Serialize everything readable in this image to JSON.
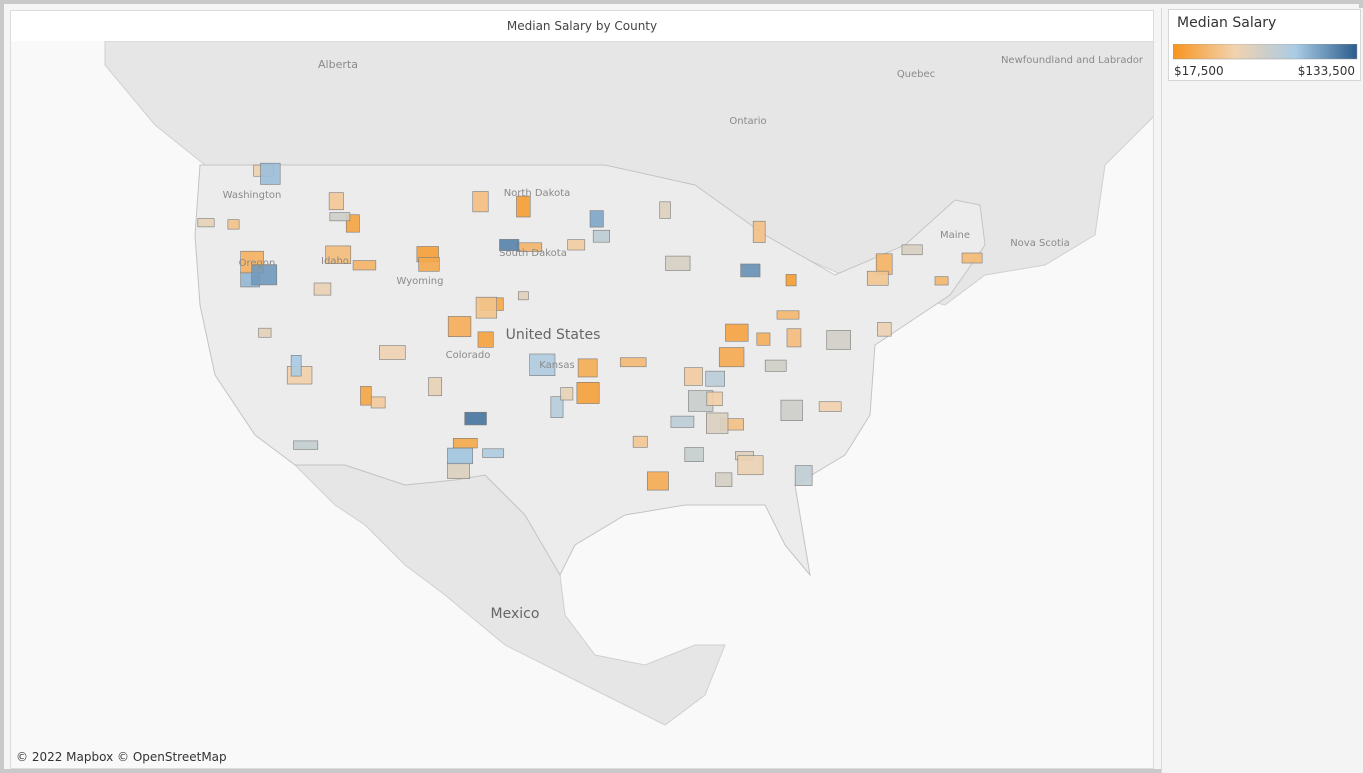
{
  "title": "Median Salary by County",
  "attribution": "© 2022 Mapbox © OpenStreetMap",
  "map_labels": [
    "Alberta",
    "Quebec",
    "Ontario",
    "Newfoundland and Labrador",
    "Nova Scotia",
    "Mexico",
    "United States",
    "North Dakota",
    "South Dakota",
    "Kansas",
    "Washington",
    "Oregon",
    "Idaho",
    "Wyoming",
    "Colorado",
    "Maine"
  ],
  "legend": {
    "title": "Median Salary",
    "min": {
      "value": 17500,
      "label": "$17,500"
    },
    "max": {
      "value": 133500,
      "label": "$133,500"
    },
    "colors": [
      "#f7951e",
      "#f2d2ae",
      "#a9cbe4",
      "#2b5c8c"
    ]
  },
  "county_values": [
    24000,
    68000,
    45000,
    92000,
    31000,
    55000,
    78000,
    29000,
    61000,
    102000,
    38000,
    47000,
    84000,
    26000,
    71000,
    52000,
    115000,
    33000,
    64000,
    41000,
    88000,
    22000,
    57000,
    74000,
    36000,
    95000,
    49000,
    28000,
    66000,
    81000,
    43000,
    59000,
    125000,
    34000,
    70000,
    25000,
    53000,
    86000,
    39000,
    62000,
    30000,
    76000,
    46000,
    99000,
    27000,
    58000,
    72000,
    35000,
    108000,
    50000,
    40000,
    65000,
    23000,
    83000,
    54000,
    32000,
    69000,
    91000,
    44000,
    60000,
    37000,
    79000,
    48000,
    120000,
    29500,
    63000,
    42000,
    75000,
    56000,
    97000,
    31500,
    67000,
    51000,
    85000,
    26500,
    73000,
    45500,
    112000,
    38500,
    61500
  ]
}
